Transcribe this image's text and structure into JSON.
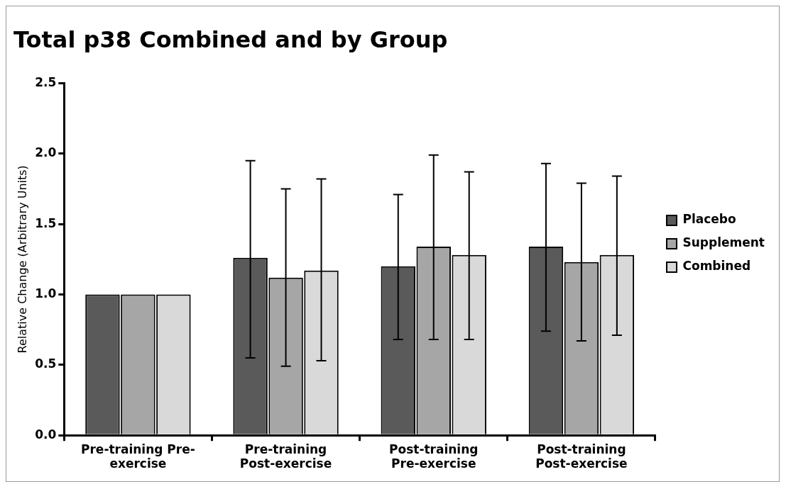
{
  "chart_data": {
    "type": "bar",
    "title": "Total p38 Combined and by Group",
    "ylabel": "Relative Change (Arbitrary Units)",
    "categories": [
      "Pre-training Pre-exercise",
      "Pre-training Post-exercise",
      "Post-training Pre-exercise",
      "Post-training Post-exercise"
    ],
    "series": [
      {
        "name": "Placebo",
        "color": "#5a5a5a",
        "values": [
          1.0,
          1.26,
          1.2,
          1.34
        ],
        "errors": [
          null,
          [
            0.55,
            1.95
          ],
          [
            0.68,
            1.71
          ],
          [
            0.74,
            1.93
          ]
        ]
      },
      {
        "name": "Supplement",
        "color": "#a6a6a6",
        "values": [
          1.0,
          1.12,
          1.34,
          1.23
        ],
        "errors": [
          null,
          [
            0.49,
            1.75
          ],
          [
            0.68,
            1.99
          ],
          [
            0.67,
            1.79
          ]
        ]
      },
      {
        "name": "Combined",
        "color": "#d9d9d9",
        "values": [
          1.0,
          1.17,
          1.28,
          1.28
        ],
        "errors": [
          null,
          [
            0.53,
            1.82
          ],
          [
            0.68,
            1.87
          ],
          [
            0.71,
            1.84
          ]
        ]
      }
    ],
    "ylim": [
      0,
      2.5
    ],
    "yticks": [
      {
        "value": 0,
        "label": "0.0"
      },
      {
        "value": 0.5,
        "label": "0.5"
      },
      {
        "value": 1,
        "label": "1.0"
      },
      {
        "value": 1.5,
        "label": "1.5"
      },
      {
        "value": 2,
        "label": "2.0"
      },
      {
        "value": 2.5,
        "label": "2.5"
      }
    ],
    "grid": false,
    "legend": "right"
  }
}
